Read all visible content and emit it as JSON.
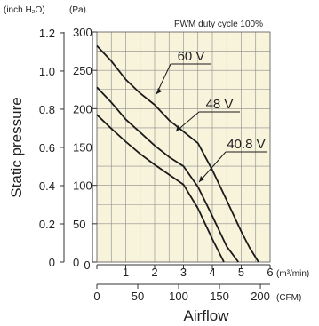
{
  "chart_data": {
    "type": "line",
    "title": "PWM duty cycle 100%",
    "xlabel": "Airflow",
    "ylabel": "Static pressure",
    "x_unit": "(m³/min)",
    "x2_unit": "(CFM)",
    "y_unit": "(Pa)",
    "y2_unit": "(inch H₂O)",
    "xlim": [
      0,
      6
    ],
    "ylim": [
      0,
      300
    ],
    "x_ticks": [
      "0",
      "1",
      "2",
      "3",
      "4",
      "5",
      "6"
    ],
    "x2_ticks": [
      "0",
      "50",
      "100",
      "150",
      "200"
    ],
    "y_ticks": [
      "0",
      "50",
      "100",
      "150",
      "200",
      "250",
      "300"
    ],
    "y2_ticks": [
      "0",
      "0.2",
      "0.4",
      "0.6",
      "0.8",
      "1.0",
      "1.2"
    ],
    "grid": true,
    "series": [
      {
        "name": "60 V",
        "x": [
          0,
          0.5,
          1.0,
          1.5,
          2.0,
          2.5,
          3.0,
          3.5,
          4.0,
          4.5,
          5.0,
          5.3,
          5.6
        ],
        "y": [
          282,
          262,
          238,
          220,
          205,
          185,
          170,
          155,
          120,
          80,
          40,
          18,
          0
        ]
      },
      {
        "name": "48 V",
        "x": [
          0,
          0.5,
          1.0,
          1.5,
          2.0,
          2.5,
          3.0,
          3.5,
          4.0,
          4.5,
          4.9
        ],
        "y": [
          228,
          208,
          186,
          169,
          152,
          137,
          125,
          98,
          60,
          20,
          0
        ]
      },
      {
        "name": "40.8 V",
        "x": [
          0,
          0.5,
          1.0,
          1.5,
          2.0,
          2.5,
          3.0,
          3.5,
          4.0,
          4.4
        ],
        "y": [
          192,
          174,
          157,
          141,
          127,
          114,
          101,
          70,
          30,
          0
        ]
      }
    ]
  }
}
